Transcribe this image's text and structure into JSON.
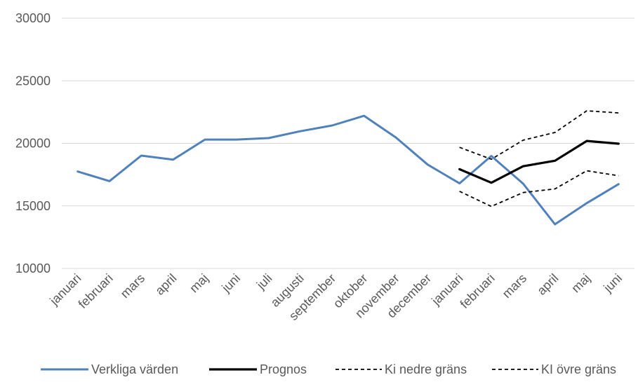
{
  "chart_data": {
    "type": "line",
    "categories": [
      "januari",
      "februari",
      "mars",
      "april",
      "maj",
      "juni",
      "juli",
      "augusti",
      "september",
      "oktober",
      "november",
      "december",
      "januari",
      "februari",
      "mars",
      "april",
      "maj",
      "juni"
    ],
    "ylim": [
      10000,
      30000
    ],
    "y_ticks": [
      10000,
      15000,
      20000,
      25000,
      30000
    ],
    "grid": "horizontal",
    "legend_position": "bottom",
    "series": [
      {
        "name": "Verkliga värden",
        "color": "#4F81BD",
        "style": "solid",
        "values": [
          17750,
          16980,
          19020,
          18700,
          20300,
          20300,
          20420,
          20970,
          21430,
          22200,
          20470,
          18300,
          16800,
          18990,
          16780,
          13530,
          15220,
          16740
        ]
      },
      {
        "name": "Prognos",
        "color": "#000000",
        "style": "solid-bold",
        "values": [
          null,
          null,
          null,
          null,
          null,
          null,
          null,
          null,
          null,
          null,
          null,
          null,
          17930,
          16850,
          18170,
          18610,
          20190,
          19970
        ]
      },
      {
        "name": "Ki nedre gräns",
        "color": "#000000",
        "style": "dashed",
        "values": [
          null,
          null,
          null,
          null,
          null,
          null,
          null,
          null,
          null,
          null,
          null,
          null,
          16170,
          14960,
          16070,
          16360,
          17810,
          17410
        ]
      },
      {
        "name": "KI övre gräns",
        "color": "#000000",
        "style": "dashed",
        "values": [
          null,
          null,
          null,
          null,
          null,
          null,
          null,
          null,
          null,
          null,
          null,
          null,
          19680,
          18730,
          20250,
          20870,
          22600,
          22430
        ]
      }
    ]
  }
}
